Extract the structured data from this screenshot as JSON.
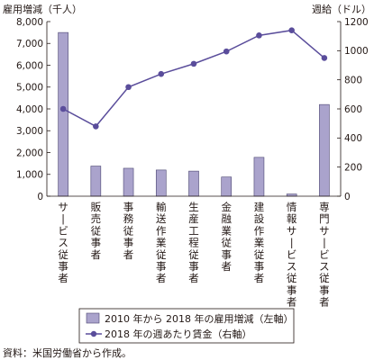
{
  "chart_data": {
    "type": "bar+line",
    "categories": [
      "サービス従事者",
      "販売従事者",
      "事務従事者",
      "輸送作業従事者",
      "生産工程従事者",
      "金融業従事者",
      "建設作業従事者",
      "情報サービス従事者",
      "専門サービス従事者"
    ],
    "series": [
      {
        "name": "2010 年から 2018 年の雇用増減（左軸）",
        "type": "bar",
        "axis": "left",
        "color": "#aaa3cc",
        "values": [
          7500,
          1380,
          1280,
          1200,
          1150,
          880,
          1780,
          100,
          4200
        ]
      },
      {
        "name": "2018 年の週あたり賃金（右軸）",
        "type": "line",
        "axis": "right",
        "color": "#5a4d9b",
        "values": [
          600,
          480,
          750,
          840,
          910,
          995,
          1105,
          1140,
          950
        ]
      }
    ],
    "left_axis": {
      "label": "雇用増減（千人）",
      "ylim": [
        0,
        8000
      ],
      "ticks": [
        "0",
        "1,000",
        "2,000",
        "3,000",
        "4,000",
        "5,000",
        "6,000",
        "7,000",
        "8,000"
      ]
    },
    "right_axis": {
      "label": "週給（ドル）",
      "ylim": [
        0,
        1200
      ],
      "ticks": [
        "0",
        "200",
        "400",
        "600",
        "800",
        "1000",
        "1200"
      ]
    },
    "grid": false,
    "legend_placement": "bottom-center",
    "source": "資料：米国労働省から作成。"
  }
}
